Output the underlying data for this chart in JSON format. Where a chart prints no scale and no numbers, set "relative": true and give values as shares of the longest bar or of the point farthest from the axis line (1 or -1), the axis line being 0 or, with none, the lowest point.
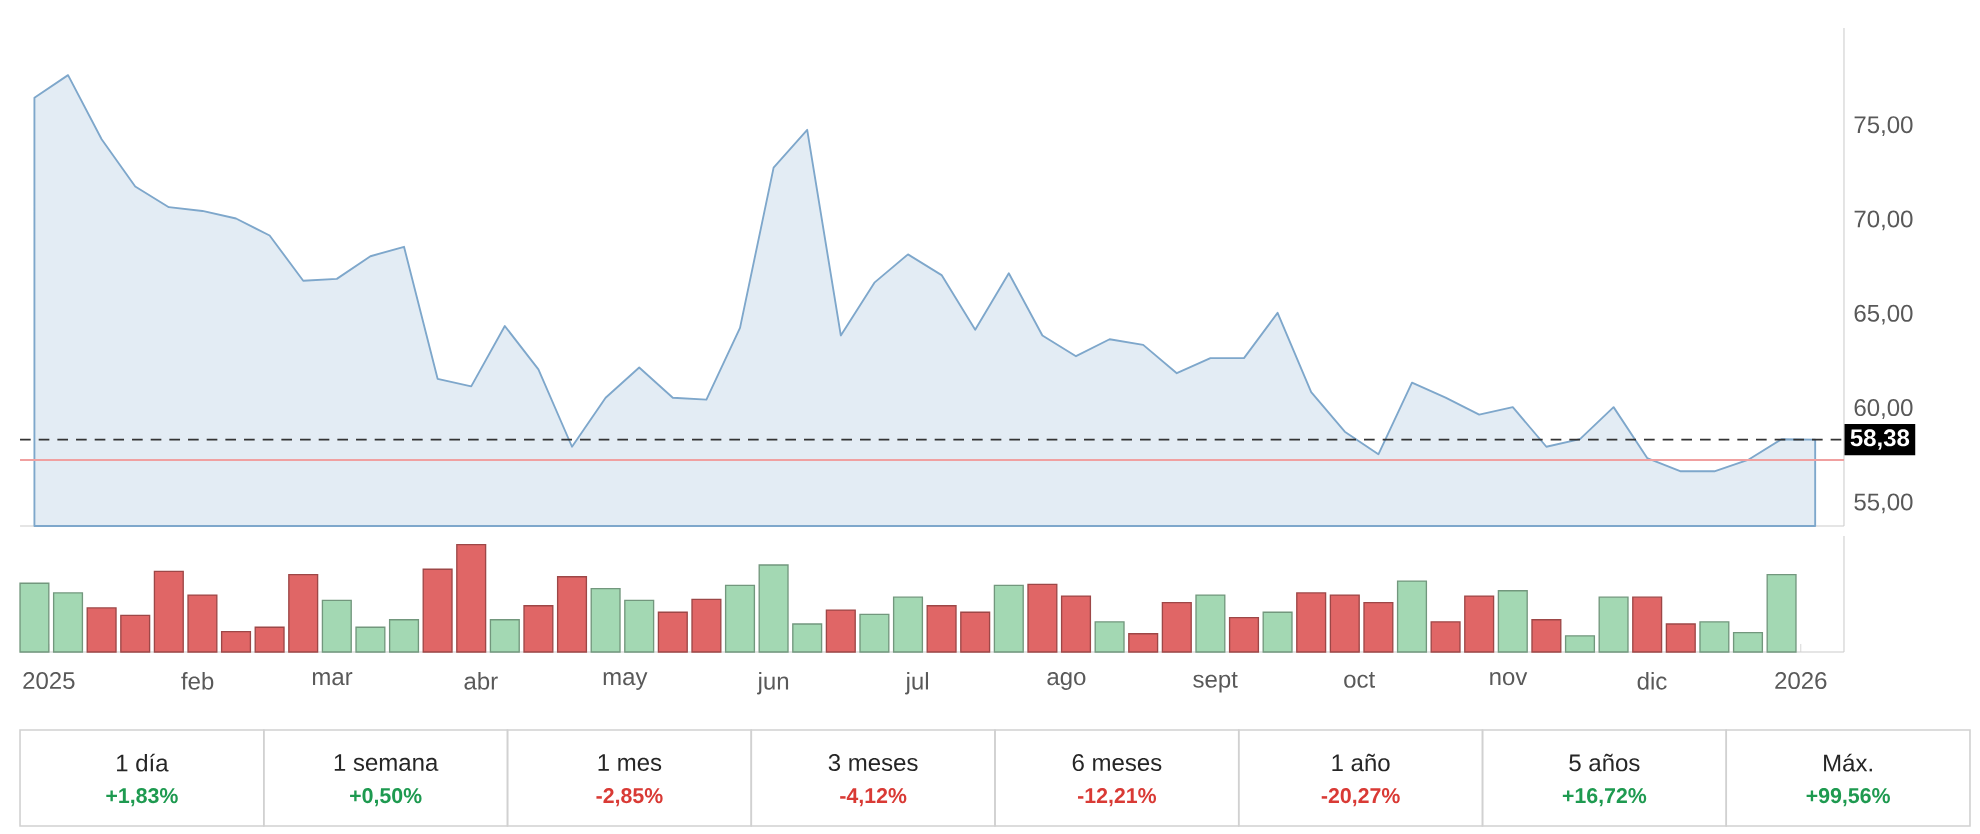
{
  "chart_data": [
    {
      "type": "area",
      "x": [
        "2024-12-29",
        "2025-01-05",
        "2025-01-12",
        "2025-01-19",
        "2025-01-26",
        "2025-02-02",
        "2025-02-09",
        "2025-02-16",
        "2025-02-23",
        "2025-03-02",
        "2025-03-09",
        "2025-03-16",
        "2025-03-23",
        "2025-03-30",
        "2025-04-06",
        "2025-04-13",
        "2025-04-20",
        "2025-04-27",
        "2025-05-04",
        "2025-05-11",
        "2025-05-18",
        "2025-05-25",
        "2025-06-01",
        "2025-06-08",
        "2025-06-15",
        "2025-06-22",
        "2025-06-29",
        "2025-07-06",
        "2025-07-13",
        "2025-07-20",
        "2025-07-27",
        "2025-08-03",
        "2025-08-10",
        "2025-08-17",
        "2025-08-24",
        "2025-08-31",
        "2025-09-07",
        "2025-09-14",
        "2025-09-21",
        "2025-09-28",
        "2025-10-05",
        "2025-10-12",
        "2025-10-19",
        "2025-10-26",
        "2025-11-02",
        "2025-11-09",
        "2025-11-16",
        "2025-11-23",
        "2025-11-30",
        "2025-12-07",
        "2025-12-14",
        "2025-12-21",
        "2025-12-28",
        "2026-01-04"
      ],
      "series": [
        {
          "color": "#7ea7cb",
          "values": [
            76.5,
            77.7,
            74.3,
            71.8,
            70.7,
            70.5,
            70.1,
            69.2,
            66.8,
            66.9,
            68.1,
            68.6,
            61.6,
            61.2,
            64.4,
            62.1,
            58.0,
            60.6,
            62.2,
            60.6,
            60.5,
            64.3,
            72.8,
            74.8,
            63.9,
            66.7,
            68.2,
            67.1,
            64.2,
            67.2,
            63.9,
            62.8,
            63.7,
            63.4,
            61.9,
            62.7,
            62.7,
            65.1,
            60.9,
            58.8,
            57.6,
            61.4,
            60.6,
            59.7,
            60.1,
            58.0,
            58.4,
            60.1,
            57.4,
            56.7,
            56.7,
            57.3,
            58.4,
            58.38
          ]
        }
      ],
      "xlim": [
        "2024-12-26",
        "2026-01-10"
      ],
      "ylim": [
        53.8,
        80.2
      ],
      "yticks": [
        {
          "value": 55,
          "label": "55,00"
        },
        {
          "value": 60,
          "label": "60,00"
        },
        {
          "value": 65,
          "label": "65,00"
        },
        {
          "value": 70,
          "label": "70,00"
        },
        {
          "value": 75,
          "label": "75,00"
        }
      ],
      "ref_lines": [
        {
          "axis": "y",
          "value": 58.38,
          "label": "58,38",
          "color": "#333333",
          "line_style": "dashed"
        },
        {
          "axis": "y",
          "value": 57.3,
          "color": "#f0a0a0",
          "line_style": "solid"
        }
      ],
      "tick_labels": "y"
    },
    {
      "type": "bar",
      "x": [
        "2024-12-29",
        "2025-01-05",
        "2025-01-12",
        "2025-01-19",
        "2025-01-26",
        "2025-02-02",
        "2025-02-09",
        "2025-02-16",
        "2025-02-23",
        "2025-03-02",
        "2025-03-09",
        "2025-03-16",
        "2025-03-23",
        "2025-03-30",
        "2025-04-06",
        "2025-04-13",
        "2025-04-20",
        "2025-04-27",
        "2025-05-04",
        "2025-05-11",
        "2025-05-18",
        "2025-05-25",
        "2025-06-01",
        "2025-06-08",
        "2025-06-15",
        "2025-06-22",
        "2025-06-29",
        "2025-07-06",
        "2025-07-13",
        "2025-07-20",
        "2025-07-27",
        "2025-08-03",
        "2025-08-10",
        "2025-08-17",
        "2025-08-24",
        "2025-08-31",
        "2025-09-07",
        "2025-09-14",
        "2025-09-21",
        "2025-09-28",
        "2025-10-05",
        "2025-10-12",
        "2025-10-19",
        "2025-10-26",
        "2025-11-02",
        "2025-11-09",
        "2025-11-16",
        "2025-11-23",
        "2025-11-30",
        "2025-12-07",
        "2025-12-14",
        "2025-12-21",
        "2025-12-28"
      ],
      "values": [
        0.64,
        0.55,
        0.41,
        0.34,
        0.75,
        0.53,
        0.19,
        0.23,
        0.72,
        0.48,
        0.23,
        0.3,
        0.77,
        1,
        0.3,
        0.43,
        0.7,
        0.59,
        0.48,
        0.37,
        0.49,
        0.62,
        0.81,
        0.26,
        0.39,
        0.35,
        0.51,
        0.43,
        0.37,
        0.62,
        0.63,
        0.52,
        0.28,
        0.17,
        0.46,
        0.53,
        0.32,
        0.37,
        0.55,
        0.53,
        0.46,
        0.66,
        0.28,
        0.52,
        0.57,
        0.3,
        0.15,
        0.51,
        0.51,
        0.26,
        0.28,
        0.18,
        0.72
      ],
      "colors": [
        "#a3d8b3",
        "#a3d8b3",
        "#e06666",
        "#e06666",
        "#e06666",
        "#e06666",
        "#e06666",
        "#e06666",
        "#e06666",
        "#a3d8b3",
        "#a3d8b3",
        "#a3d8b3",
        "#e06666",
        "#e06666",
        "#a3d8b3",
        "#e06666",
        "#e06666",
        "#a3d8b3",
        "#a3d8b3",
        "#e06666",
        "#e06666",
        "#a3d8b3",
        "#a3d8b3",
        "#a3d8b3",
        "#e06666",
        "#a3d8b3",
        "#a3d8b3",
        "#e06666",
        "#e06666",
        "#a3d8b3",
        "#e06666",
        "#e06666",
        "#a3d8b3",
        "#e06666",
        "#e06666",
        "#a3d8b3",
        "#e06666",
        "#a3d8b3",
        "#e06666",
        "#e06666",
        "#e06666",
        "#a3d8b3",
        "#e06666",
        "#e06666",
        "#a3d8b3",
        "#e06666",
        "#a3d8b3",
        "#a3d8b3",
        "#e06666",
        "#e06666",
        "#a3d8b3",
        "#a3d8b3",
        "#a3d8b3"
      ],
      "relative": true,
      "xlim": [
        "2024-12-26",
        "2026-01-10"
      ],
      "xticks": [
        {
          "value": "2025-01-01",
          "label": "2025"
        },
        {
          "value": "2025-02-01",
          "label": "feb"
        },
        {
          "value": "2025-03-01",
          "label": "mar"
        },
        {
          "value": "2025-04-01",
          "label": "abr"
        },
        {
          "value": "2025-05-01",
          "label": "may"
        },
        {
          "value": "2025-06-01",
          "label": "jun"
        },
        {
          "value": "2025-07-01",
          "label": "jul"
        },
        {
          "value": "2025-08-01",
          "label": "ago"
        },
        {
          "value": "2025-09-01",
          "label": "sept"
        },
        {
          "value": "2025-10-01",
          "label": "oct"
        },
        {
          "value": "2025-11-01",
          "label": "nov"
        },
        {
          "value": "2025-12-01",
          "label": "dic"
        },
        {
          "value": "2026-01-01",
          "label": "2026"
        }
      ],
      "tick_labels": "x"
    },
    {
      "type": "other",
      "categories": [
        "1 día",
        "1 semana",
        "1 mes",
        "3 meses",
        "6 meses",
        "1 año",
        "5 años",
        "Máx."
      ],
      "value_labels": [
        "+1,83%",
        "+0,50%",
        "-2,85%",
        "-4,12%",
        "-12,21%",
        "-20,27%",
        "+16,72%",
        "+99,56%"
      ],
      "colors": [
        "#1e9a50",
        "#1e9a50",
        "#d93a35",
        "#d93a35",
        "#d93a35",
        "#d93a35",
        "#1e9a50",
        "#1e9a50"
      ]
    }
  ]
}
